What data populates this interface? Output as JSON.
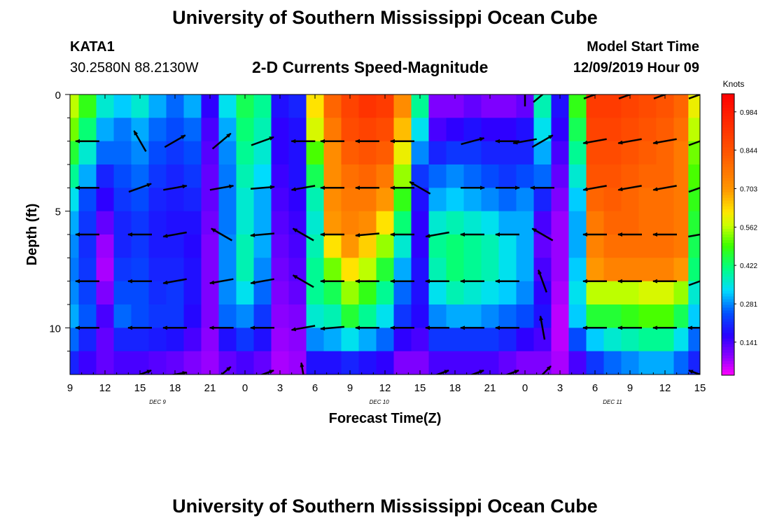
{
  "page": {
    "title_top": "University of Southern Mississippi Ocean Cube",
    "title_bottom": "University of Southern Mississippi Ocean Cube",
    "station_id": "KATA1",
    "station_coords": "30.2580N 88.2130W",
    "model_start_label": "Model Start Time",
    "model_start_value": "12/09/2019 Hour 09"
  },
  "chart_data": {
    "type": "heatmap",
    "title": "2-D Currents Speed-Magnitude",
    "xlabel": "Forecast Time(Z)",
    "ylabel": "Depth (ft)",
    "x_tick_labels": [
      "9",
      "12",
      "15",
      "18",
      "21",
      "0",
      "3",
      "6",
      "9",
      "12",
      "15",
      "18",
      "21",
      "0",
      "3",
      "6",
      "9",
      "12",
      "15"
    ],
    "x_hours_since_start": [
      0,
      3,
      6,
      9,
      12,
      15,
      18,
      21,
      24,
      27,
      30,
      33,
      36,
      39,
      42,
      45,
      48,
      51,
      54
    ],
    "xlim_hours": [
      0,
      54
    ],
    "date_labels": [
      {
        "text": "DEC 9",
        "hour": 7.5
      },
      {
        "text": "DEC 10",
        "hour": 26.5
      },
      {
        "text": "DEC 11",
        "hour": 46.5
      }
    ],
    "y_tick_labels": [
      "0",
      "5",
      "10"
    ],
    "y_ticks": [
      0,
      5,
      10
    ],
    "ylim": [
      0,
      12
    ],
    "colorbar": {
      "label": "Knots",
      "tick_labels": [
        "0.984",
        "0.844",
        "0.703",
        "0.562",
        "0.422",
        "0.281",
        "0.141"
      ],
      "tick_values": [
        0.984,
        0.844,
        0.703,
        0.562,
        0.422,
        0.281,
        0.141
      ],
      "range": [
        0.02,
        1.05
      ]
    },
    "depth_layers_ft": [
      0,
      1,
      2,
      3,
      4,
      5,
      6,
      7,
      8,
      9,
      10,
      11,
      12
    ],
    "speed_columns": [
      {
        "h": 0.0,
        "v": [
          0.56,
          0.52,
          0.46,
          0.4,
          0.34,
          0.3,
          0.28,
          0.27,
          0.28,
          0.3,
          0.26,
          0.2
        ]
      },
      {
        "h": 1.5,
        "v": [
          0.48,
          0.42,
          0.36,
          0.3,
          0.24,
          0.22,
          0.21,
          0.22,
          0.23,
          0.25,
          0.2,
          0.15
        ]
      },
      {
        "h": 3.0,
        "v": [
          0.36,
          0.3,
          0.26,
          0.2,
          0.16,
          0.12,
          0.08,
          0.07,
          0.1,
          0.14,
          0.12,
          0.12
        ]
      },
      {
        "h": 4.5,
        "v": [
          0.32,
          0.27,
          0.26,
          0.24,
          0.22,
          0.2,
          0.2,
          0.22,
          0.24,
          0.26,
          0.2,
          0.14
        ]
      },
      {
        "h": 6.0,
        "v": [
          0.36,
          0.3,
          0.28,
          0.26,
          0.24,
          0.22,
          0.22,
          0.23,
          0.24,
          0.24,
          0.2,
          0.14
        ]
      },
      {
        "h": 7.5,
        "v": [
          0.3,
          0.26,
          0.24,
          0.22,
          0.2,
          0.19,
          0.19,
          0.2,
          0.21,
          0.22,
          0.19,
          0.13
        ]
      },
      {
        "h": 9.0,
        "v": [
          0.26,
          0.24,
          0.22,
          0.2,
          0.19,
          0.18,
          0.19,
          0.2,
          0.22,
          0.22,
          0.18,
          0.12
        ]
      },
      {
        "h": 10.5,
        "v": [
          0.3,
          0.26,
          0.24,
          0.22,
          0.2,
          0.18,
          0.17,
          0.18,
          0.18,
          0.17,
          0.14,
          0.1
        ]
      },
      {
        "h": 12.0,
        "v": [
          0.16,
          0.14,
          0.13,
          0.12,
          0.12,
          0.11,
          0.1,
          0.1,
          0.1,
          0.1,
          0.09,
          0.08
        ]
      },
      {
        "h": 13.5,
        "v": [
          0.34,
          0.3,
          0.28,
          0.27,
          0.27,
          0.27,
          0.28,
          0.28,
          0.28,
          0.26,
          0.18,
          0.12
        ]
      },
      {
        "h": 15.0,
        "v": [
          0.44,
          0.42,
          0.4,
          0.38,
          0.36,
          0.36,
          0.38,
          0.38,
          0.34,
          0.28,
          0.22,
          0.14
        ]
      },
      {
        "h": 16.5,
        "v": [
          0.4,
          0.38,
          0.36,
          0.33,
          0.3,
          0.3,
          0.3,
          0.28,
          0.26,
          0.22,
          0.18,
          0.12
        ]
      },
      {
        "h": 18.0,
        "v": [
          0.18,
          0.16,
          0.16,
          0.15,
          0.14,
          0.13,
          0.12,
          0.11,
          0.1,
          0.09,
          0.08,
          0.07
        ]
      },
      {
        "h": 19.5,
        "v": [
          0.2,
          0.18,
          0.18,
          0.18,
          0.16,
          0.15,
          0.14,
          0.13,
          0.12,
          0.1,
          0.09,
          0.08
        ]
      },
      {
        "h": 21.0,
        "v": [
          0.62,
          0.58,
          0.5,
          0.44,
          0.38,
          0.36,
          0.38,
          0.4,
          0.4,
          0.36,
          0.28,
          0.18
        ]
      },
      {
        "h": 22.5,
        "v": [
          0.8,
          0.76,
          0.72,
          0.72,
          0.72,
          0.7,
          0.62,
          0.52,
          0.44,
          0.38,
          0.3,
          0.18
        ]
      },
      {
        "h": 24.0,
        "v": [
          0.88,
          0.86,
          0.82,
          0.78,
          0.76,
          0.74,
          0.7,
          0.62,
          0.54,
          0.46,
          0.34,
          0.2
        ]
      },
      {
        "h": 25.5,
        "v": [
          0.92,
          0.88,
          0.84,
          0.8,
          0.76,
          0.72,
          0.64,
          0.56,
          0.48,
          0.4,
          0.3,
          0.18
        ]
      },
      {
        "h": 27.0,
        "v": [
          0.9,
          0.86,
          0.82,
          0.76,
          0.7,
          0.62,
          0.54,
          0.46,
          0.4,
          0.34,
          0.26,
          0.16
        ]
      },
      {
        "h": 28.5,
        "v": [
          0.72,
          0.66,
          0.6,
          0.54,
          0.48,
          0.42,
          0.36,
          0.3,
          0.26,
          0.22,
          0.16,
          0.1
        ]
      },
      {
        "h": 30.0,
        "v": [
          0.4,
          0.34,
          0.28,
          0.22,
          0.18,
          0.16,
          0.16,
          0.18,
          0.18,
          0.17,
          0.14,
          0.1
        ]
      },
      {
        "h": 31.5,
        "v": [
          0.1,
          0.14,
          0.2,
          0.26,
          0.3,
          0.36,
          0.4,
          0.38,
          0.34,
          0.28,
          0.22,
          0.14
        ]
      },
      {
        "h": 33.0,
        "v": [
          0.1,
          0.16,
          0.22,
          0.28,
          0.32,
          0.38,
          0.42,
          0.42,
          0.38,
          0.3,
          0.22,
          0.14
        ]
      },
      {
        "h": 34.5,
        "v": [
          0.12,
          0.18,
          0.22,
          0.26,
          0.3,
          0.36,
          0.4,
          0.4,
          0.36,
          0.3,
          0.22,
          0.14
        ]
      },
      {
        "h": 36.0,
        "v": [
          0.1,
          0.16,
          0.2,
          0.24,
          0.28,
          0.34,
          0.38,
          0.38,
          0.34,
          0.28,
          0.22,
          0.14
        ]
      },
      {
        "h": 37.5,
        "v": [
          0.1,
          0.16,
          0.2,
          0.22,
          0.26,
          0.3,
          0.34,
          0.34,
          0.32,
          0.26,
          0.2,
          0.12
        ]
      },
      {
        "h": 39.0,
        "v": [
          0.12,
          0.18,
          0.2,
          0.24,
          0.28,
          0.3,
          0.3,
          0.3,
          0.28,
          0.24,
          0.16,
          0.1
        ]
      },
      {
        "h": 40.5,
        "v": [
          0.38,
          0.34,
          0.3,
          0.26,
          0.2,
          0.14,
          0.12,
          0.14,
          0.16,
          0.18,
          0.14,
          0.1
        ]
      },
      {
        "h": 42.0,
        "v": [
          0.18,
          0.16,
          0.14,
          0.12,
          0.1,
          0.08,
          0.08,
          0.08,
          0.07,
          0.06,
          0.06,
          0.07
        ]
      },
      {
        "h": 43.5,
        "v": [
          0.48,
          0.44,
          0.4,
          0.36,
          0.32,
          0.3,
          0.3,
          0.32,
          0.34,
          0.32,
          0.24,
          0.14
        ]
      },
      {
        "h": 45.0,
        "v": [
          0.9,
          0.88,
          0.86,
          0.84,
          0.8,
          0.76,
          0.74,
          0.7,
          0.56,
          0.46,
          0.32,
          0.22
        ]
      },
      {
        "h": 46.5,
        "v": [
          0.9,
          0.88,
          0.86,
          0.84,
          0.82,
          0.8,
          0.78,
          0.74,
          0.56,
          0.46,
          0.36,
          0.26
        ]
      },
      {
        "h": 48.0,
        "v": [
          0.88,
          0.86,
          0.84,
          0.82,
          0.8,
          0.8,
          0.78,
          0.74,
          0.56,
          0.48,
          0.38,
          0.28
        ]
      },
      {
        "h": 49.5,
        "v": [
          0.86,
          0.84,
          0.82,
          0.8,
          0.78,
          0.78,
          0.78,
          0.74,
          0.58,
          0.5,
          0.4,
          0.3
        ]
      },
      {
        "h": 51.0,
        "v": [
          0.84,
          0.82,
          0.8,
          0.8,
          0.78,
          0.78,
          0.78,
          0.74,
          0.58,
          0.5,
          0.4,
          0.3
        ]
      },
      {
        "h": 52.5,
        "v": [
          0.8,
          0.78,
          0.76,
          0.76,
          0.76,
          0.76,
          0.76,
          0.7,
          0.54,
          0.44,
          0.34,
          0.26
        ]
      },
      {
        "h": 53.5,
        "v": [
          0.6,
          0.56,
          0.52,
          0.5,
          0.48,
          0.46,
          0.44,
          0.42,
          0.36,
          0.32,
          0.26,
          0.2
        ]
      }
    ],
    "vector_depths_ft": [
      0,
      2,
      4,
      6,
      8,
      10,
      12
    ],
    "vector_columns": [
      {
        "h": 1.5,
        "d": [
          null,
          180,
          180,
          180,
          180,
          180,
          null
        ]
      },
      {
        "h": 6.0,
        "d": [
          null,
          120,
          20,
          180,
          180,
          180,
          20
        ]
      },
      {
        "h": 9.0,
        "d": [
          null,
          30,
          10,
          190,
          190,
          180,
          10
        ]
      },
      {
        "h": 13.0,
        "d": [
          null,
          40,
          10,
          150,
          190,
          180,
          40
        ]
      },
      {
        "h": 16.5,
        "d": [
          null,
          20,
          5,
          185,
          190,
          180,
          20
        ]
      },
      {
        "h": 20.0,
        "d": [
          null,
          180,
          190,
          150,
          150,
          190,
          100
        ]
      },
      {
        "h": 22.5,
        "d": [
          null,
          180,
          180,
          180,
          180,
          185,
          null
        ]
      },
      {
        "h": 25.5,
        "d": [
          null,
          180,
          180,
          185,
          180,
          180,
          null
        ]
      },
      {
        "h": 28.5,
        "d": [
          null,
          180,
          180,
          180,
          180,
          180,
          null
        ]
      },
      {
        "h": 30.0,
        "d": [
          null,
          null,
          150,
          null,
          null,
          null,
          null
        ]
      },
      {
        "h": 31.5,
        "d": [
          null,
          null,
          null,
          190,
          180,
          180,
          20
        ]
      },
      {
        "h": 34.5,
        "d": [
          null,
          15,
          0,
          180,
          180,
          180,
          20
        ]
      },
      {
        "h": 37.5,
        "d": [
          null,
          180,
          0,
          180,
          180,
          180,
          20
        ]
      },
      {
        "h": 39.0,
        "d": [
          90,
          190,
          null,
          null,
          null,
          null,
          null
        ]
      },
      {
        "h": 40.5,
        "d": [
          40,
          30,
          180,
          150,
          110,
          100,
          45
        ]
      },
      {
        "h": 42.0,
        "d": [
          null,
          null,
          null,
          null,
          null,
          null,
          null
        ]
      },
      {
        "h": 45.0,
        "d": [
          20,
          190,
          190,
          180,
          180,
          180,
          null
        ]
      },
      {
        "h": 48.0,
        "d": [
          20,
          190,
          190,
          180,
          180,
          180,
          null
        ]
      },
      {
        "h": 51.0,
        "d": [
          20,
          190,
          190,
          180,
          180,
          180,
          null
        ]
      },
      {
        "h": 54.0,
        "d": [
          20,
          20,
          20,
          10,
          20,
          180,
          160
        ]
      }
    ]
  }
}
